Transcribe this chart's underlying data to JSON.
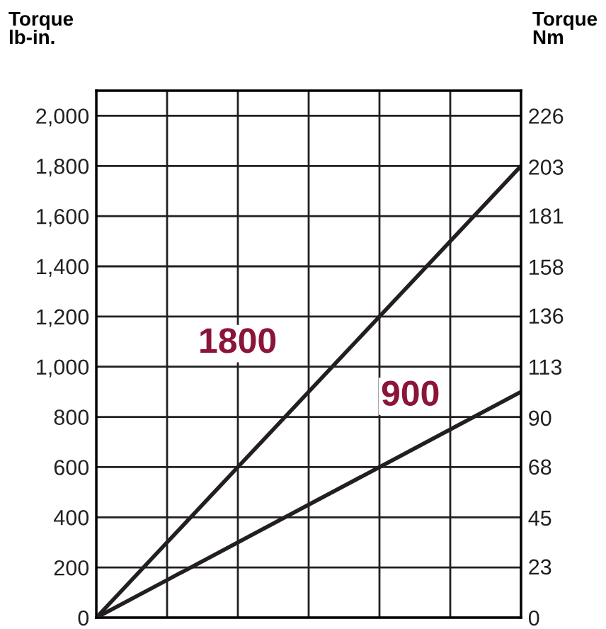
{
  "chart_data": {
    "type": "line",
    "ylabel": "Torque\nlb-in.",
    "y2label": "Torque\nNm",
    "categories": [
      null,
      null,
      null,
      null,
      null,
      null,
      null
    ],
    "series": [
      {
        "color": "#231f20",
        "values": [
          0,
          300,
          600,
          900,
          1200,
          1500,
          1800
        ]
      },
      {
        "color": "#231f20",
        "values": [
          0,
          150,
          300,
          450,
          600,
          750,
          900
        ]
      }
    ],
    "ylim": [
      0,
      2100
    ],
    "yticks": [
      {
        "value": 0,
        "label": "0"
      },
      {
        "value": 200,
        "label": "200"
      },
      {
        "value": 400,
        "label": "400"
      },
      {
        "value": 600,
        "label": "600"
      },
      {
        "value": 800,
        "label": "800"
      },
      {
        "value": 1000,
        "label": "1,000"
      },
      {
        "value": 1200,
        "label": "1,200"
      },
      {
        "value": 1400,
        "label": "1,400"
      },
      {
        "value": 1600,
        "label": "1,600"
      },
      {
        "value": 1800,
        "label": "1,800"
      },
      {
        "value": 2000,
        "label": "2,000"
      }
    ],
    "y2lim": [
      0,
      237.3
    ],
    "y2ticks": [
      0,
      23,
      45,
      68,
      90,
      113,
      136,
      158,
      181,
      203,
      226
    ],
    "annotations": [
      "1800",
      "900"
    ],
    "grid": true,
    "tick_labels": "y",
    "marker": "none",
    "line_style": "solid"
  }
}
